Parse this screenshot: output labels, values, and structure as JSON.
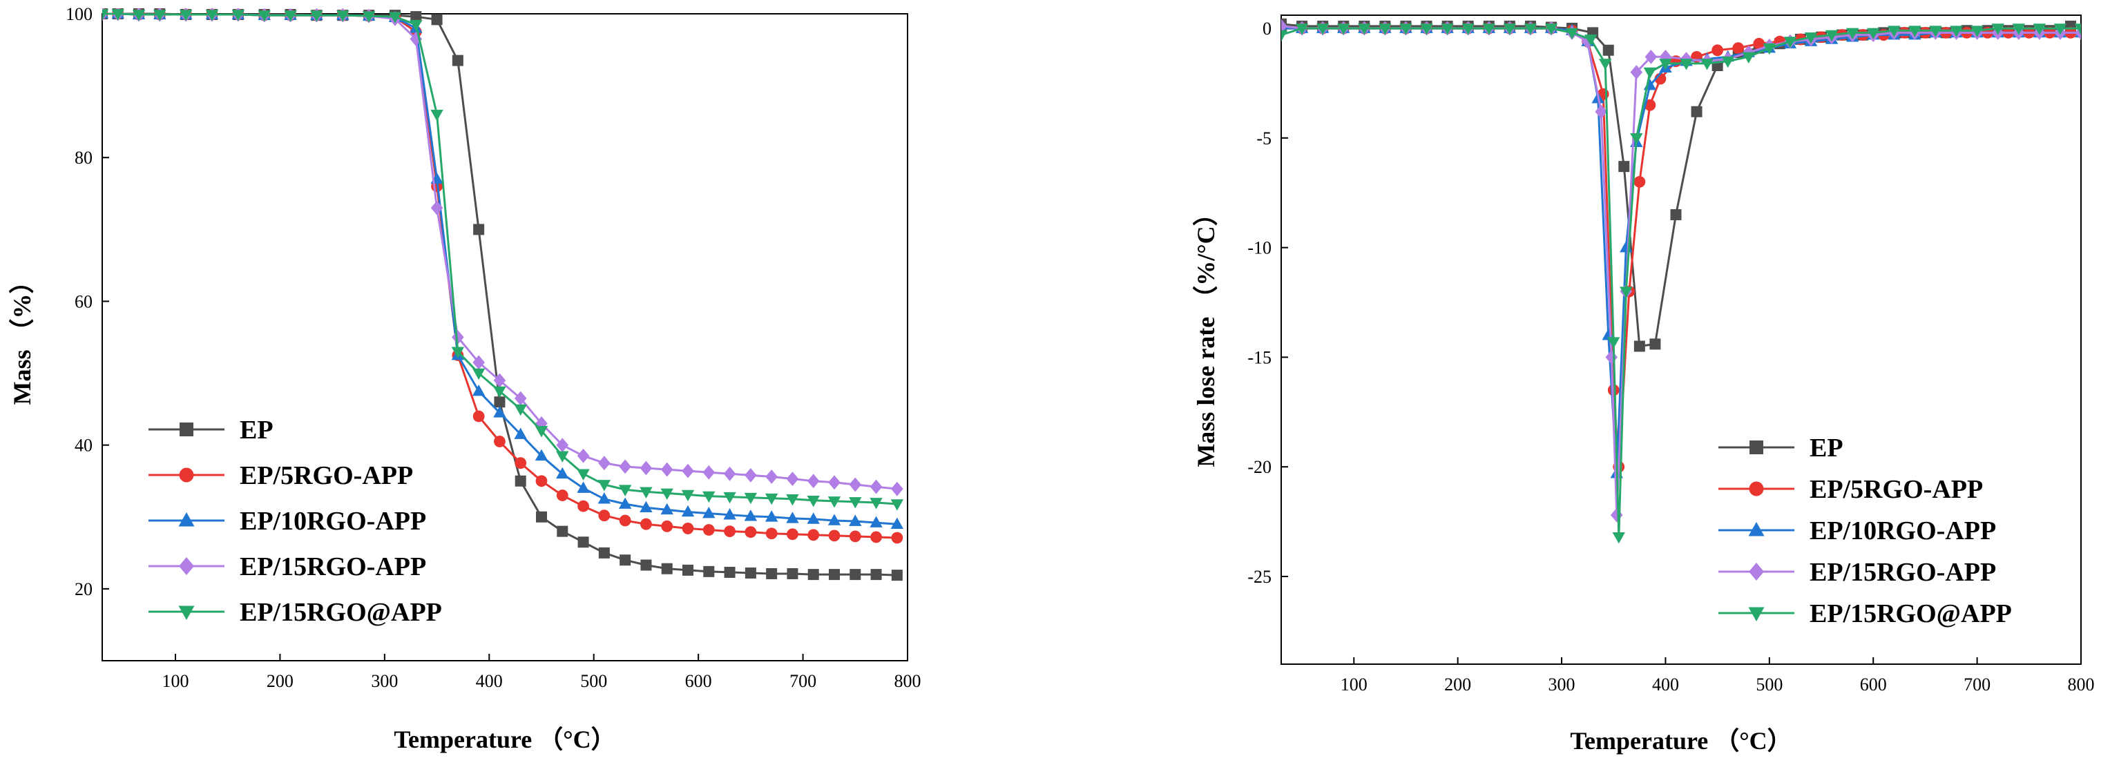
{
  "chart_data": [
    {
      "type": "line",
      "xlabel": "Temperature （°C）",
      "ylabel": "Mass （%）",
      "xlim": [
        30,
        800
      ],
      "ylim": [
        10,
        100
      ],
      "xticks": [
        100,
        200,
        300,
        400,
        500,
        600,
        700,
        800
      ],
      "yticks": [
        20,
        40,
        60,
        80,
        100
      ],
      "grid": false,
      "legend_position": "bottom-left",
      "series": [
        {
          "name": "EP",
          "color": "#4d4d4d",
          "marker": "square",
          "x": [
            30,
            45,
            65,
            85,
            110,
            135,
            160,
            185,
            210,
            235,
            260,
            285,
            310,
            330,
            350,
            370,
            390,
            410,
            430,
            450,
            470,
            490,
            510,
            530,
            550,
            570,
            590,
            610,
            630,
            650,
            670,
            690,
            710,
            730,
            750,
            770,
            790
          ],
          "y": [
            100,
            100,
            100,
            100,
            99.9,
            99.9,
            99.9,
            99.9,
            99.9,
            99.8,
            99.8,
            99.8,
            99.8,
            99.6,
            99.2,
            93.5,
            70,
            46,
            35,
            30,
            28,
            26.5,
            25,
            24,
            23.3,
            22.8,
            22.6,
            22.4,
            22.3,
            22.2,
            22.1,
            22.1,
            22.0,
            22.0,
            22.0,
            22.0,
            21.9
          ]
        },
        {
          "name": "EP/5RGO-APP",
          "color": "#e8352f",
          "marker": "circle",
          "x": [
            30,
            45,
            65,
            85,
            110,
            135,
            160,
            185,
            210,
            235,
            260,
            285,
            310,
            330,
            350,
            370,
            390,
            410,
            430,
            450,
            470,
            490,
            510,
            530,
            550,
            570,
            590,
            610,
            630,
            650,
            670,
            690,
            710,
            730,
            750,
            770,
            790
          ],
          "y": [
            100,
            100,
            99.9,
            99.9,
            99.9,
            99.9,
            99.9,
            99.8,
            99.8,
            99.8,
            99.8,
            99.7,
            99.5,
            97.5,
            76,
            52.5,
            44,
            40.5,
            37.5,
            35,
            33,
            31.5,
            30.2,
            29.5,
            29.0,
            28.7,
            28.4,
            28.2,
            28.0,
            27.9,
            27.7,
            27.6,
            27.5,
            27.4,
            27.3,
            27.2,
            27.1
          ]
        },
        {
          "name": "EP/10RGO-APP",
          "color": "#2176d2",
          "marker": "triangle-up",
          "x": [
            30,
            45,
            65,
            85,
            110,
            135,
            160,
            185,
            210,
            235,
            260,
            285,
            310,
            330,
            350,
            370,
            390,
            410,
            430,
            450,
            470,
            490,
            510,
            530,
            550,
            570,
            590,
            610,
            630,
            650,
            670,
            690,
            710,
            730,
            750,
            770,
            790
          ],
          "y": [
            100,
            100,
            99.9,
            99.9,
            99.9,
            99.9,
            99.9,
            99.8,
            99.8,
            99.8,
            99.8,
            99.7,
            99.5,
            98,
            77,
            52.5,
            47.5,
            44.5,
            41.5,
            38.5,
            36,
            34,
            32.5,
            31.8,
            31.3,
            31.0,
            30.7,
            30.5,
            30.3,
            30.1,
            30.0,
            29.8,
            29.7,
            29.5,
            29.4,
            29.2,
            29.0
          ]
        },
        {
          "name": "EP/15RGO-APP",
          "color": "#b07ee5",
          "marker": "diamond",
          "x": [
            30,
            45,
            65,
            85,
            110,
            135,
            160,
            185,
            210,
            235,
            260,
            285,
            310,
            330,
            350,
            370,
            390,
            410,
            430,
            450,
            470,
            490,
            510,
            530,
            550,
            570,
            590,
            610,
            630,
            650,
            670,
            690,
            710,
            730,
            750,
            770,
            790
          ],
          "y": [
            100,
            100,
            99.9,
            99.9,
            99.9,
            99.9,
            99.9,
            99.8,
            99.8,
            99.8,
            99.8,
            99.7,
            99.3,
            96.5,
            73,
            55,
            51.5,
            49,
            46.5,
            43,
            40,
            38.5,
            37.5,
            37.0,
            36.8,
            36.6,
            36.4,
            36.2,
            36.0,
            35.8,
            35.6,
            35.3,
            35.0,
            34.8,
            34.5,
            34.2,
            33.9
          ]
        },
        {
          "name": "EP/15RGO@APP",
          "color": "#26a86a",
          "marker": "triangle-down",
          "x": [
            30,
            45,
            65,
            85,
            110,
            135,
            160,
            185,
            210,
            235,
            260,
            285,
            310,
            330,
            350,
            370,
            390,
            410,
            430,
            450,
            470,
            490,
            510,
            530,
            550,
            570,
            590,
            610,
            630,
            650,
            670,
            690,
            710,
            730,
            750,
            770,
            790
          ],
          "y": [
            100,
            100,
            99.9,
            99.9,
            99.9,
            99.9,
            99.9,
            99.8,
            99.8,
            99.8,
            99.8,
            99.7,
            99.6,
            98.5,
            86,
            53,
            50,
            47.5,
            45,
            42,
            38.5,
            36,
            34.5,
            33.8,
            33.5,
            33.3,
            33.1,
            32.9,
            32.8,
            32.7,
            32.6,
            32.5,
            32.3,
            32.2,
            32.1,
            32.0,
            31.8
          ]
        }
      ]
    },
    {
      "type": "line",
      "xlabel": "Temperature （°C）",
      "ylabel": "Mass lose rate （%/°C）",
      "xlim": [
        30,
        800
      ],
      "ylim": [
        -29,
        0.6
      ],
      "xticks": [
        100,
        200,
        300,
        400,
        500,
        600,
        700,
        800
      ],
      "yticks": [
        0,
        -5,
        -10,
        -15,
        -20,
        -25
      ],
      "grid": false,
      "legend_position": "bottom-right",
      "series": [
        {
          "name": "EP",
          "color": "#4d4d4d",
          "marker": "square",
          "x": [
            30,
            50,
            70,
            90,
            110,
            130,
            150,
            170,
            190,
            210,
            230,
            250,
            270,
            290,
            310,
            330,
            345,
            360,
            375,
            390,
            410,
            430,
            450,
            470,
            490,
            510,
            530,
            550,
            570,
            590,
            610,
            630,
            650,
            670,
            690,
            710,
            730,
            750,
            770,
            790
          ],
          "y": [
            0.2,
            0.1,
            0.1,
            0.1,
            0.1,
            0.1,
            0.1,
            0.1,
            0.1,
            0.1,
            0.1,
            0.1,
            0.1,
            0.05,
            0,
            -0.2,
            -1.0,
            -6.3,
            -14.5,
            -14.4,
            -8.5,
            -3.8,
            -1.7,
            -1.1,
            -0.9,
            -0.7,
            -0.5,
            -0.4,
            -0.3,
            -0.3,
            -0.2,
            -0.2,
            -0.2,
            -0.2,
            -0.1,
            -0.1,
            -0.1,
            -0.1,
            -0.1,
            0.1
          ]
        },
        {
          "name": "EP/5RGO-APP",
          "color": "#e8352f",
          "marker": "circle",
          "x": [
            30,
            50,
            70,
            90,
            110,
            130,
            150,
            170,
            190,
            210,
            230,
            250,
            270,
            290,
            310,
            325,
            340,
            350,
            355,
            365,
            375,
            385,
            395,
            410,
            430,
            450,
            470,
            490,
            510,
            530,
            550,
            570,
            590,
            610,
            630,
            650,
            670,
            690,
            710,
            730,
            750,
            770,
            790
          ],
          "y": [
            0,
            0,
            0,
            0,
            0,
            0,
            0,
            0,
            0,
            0,
            0,
            0,
            0,
            0,
            -0.1,
            -0.6,
            -3.0,
            -16.5,
            -20.0,
            -12.0,
            -7.0,
            -3.5,
            -2.3,
            -1.5,
            -1.3,
            -1.0,
            -0.9,
            -0.7,
            -0.6,
            -0.5,
            -0.4,
            -0.3,
            -0.3,
            -0.3,
            -0.2,
            -0.2,
            -0.2,
            -0.2,
            -0.2,
            -0.2,
            -0.2,
            -0.2,
            -0.2
          ]
        },
        {
          "name": "EP/10RGO-APP",
          "color": "#2176d2",
          "marker": "triangle-up",
          "x": [
            30,
            50,
            70,
            90,
            110,
            130,
            150,
            170,
            190,
            210,
            230,
            250,
            270,
            290,
            310,
            325,
            335,
            345,
            353,
            362,
            372,
            385,
            400,
            420,
            440,
            460,
            480,
            500,
            520,
            540,
            560,
            580,
            600,
            620,
            640,
            660,
            680,
            700,
            720,
            740,
            760,
            780,
            800
          ],
          "y": [
            0,
            0,
            0,
            0,
            0,
            0,
            0,
            0,
            0,
            0,
            0,
            0,
            0,
            0,
            -0.1,
            -0.6,
            -3.2,
            -14.0,
            -20.3,
            -10.0,
            -5.2,
            -2.6,
            -1.8,
            -1.5,
            -1.4,
            -1.3,
            -1.1,
            -0.9,
            -0.7,
            -0.6,
            -0.5,
            -0.4,
            -0.3,
            -0.3,
            -0.3,
            -0.2,
            -0.2,
            -0.2,
            -0.2,
            -0.2,
            -0.2,
            -0.2,
            -0.2
          ]
        },
        {
          "name": "EP/15RGO-APP",
          "color": "#b07ee5",
          "marker": "diamond",
          "x": [
            30,
            50,
            70,
            90,
            110,
            130,
            150,
            170,
            190,
            210,
            230,
            250,
            270,
            290,
            310,
            325,
            338,
            348,
            353,
            362,
            372,
            386,
            400,
            420,
            440,
            460,
            480,
            500,
            520,
            540,
            560,
            580,
            600,
            620,
            640,
            660,
            680,
            700,
            720,
            740,
            760,
            780,
            800
          ],
          "y": [
            0.1,
            0,
            0,
            0,
            0,
            0,
            0,
            0,
            0,
            0,
            0,
            0,
            0,
            0,
            -0.2,
            -0.6,
            -3.8,
            -15.0,
            -22.2,
            -12.0,
            -2.0,
            -1.3,
            -1.3,
            -1.4,
            -1.5,
            -1.4,
            -1.1,
            -0.8,
            -0.6,
            -0.5,
            -0.4,
            -0.3,
            -0.3,
            -0.2,
            -0.2,
            -0.2,
            -0.2,
            -0.2,
            -0.2,
            -0.2,
            -0.2,
            -0.2,
            -0.2
          ]
        },
        {
          "name": "EP/15RGO@APP",
          "color": "#26a86a",
          "marker": "triangle-down",
          "x": [
            30,
            50,
            70,
            90,
            110,
            130,
            150,
            170,
            190,
            210,
            230,
            250,
            270,
            290,
            310,
            328,
            342,
            350,
            355,
            362,
            372,
            385,
            400,
            420,
            440,
            460,
            480,
            500,
            520,
            540,
            560,
            580,
            600,
            620,
            640,
            660,
            680,
            700,
            720,
            740,
            760,
            780,
            800
          ],
          "y": [
            -0.3,
            0,
            0,
            0,
            0,
            0,
            0,
            0,
            0,
            0,
            0,
            0,
            0,
            0,
            -0.2,
            -0.5,
            -1.6,
            -14.3,
            -23.2,
            -12.0,
            -5.0,
            -2.0,
            -1.6,
            -1.6,
            -1.6,
            -1.5,
            -1.3,
            -0.9,
            -0.6,
            -0.4,
            -0.3,
            -0.2,
            -0.2,
            -0.1,
            -0.1,
            -0.1,
            -0.1,
            -0.1,
            0,
            0,
            0,
            0,
            0
          ]
        }
      ]
    }
  ]
}
